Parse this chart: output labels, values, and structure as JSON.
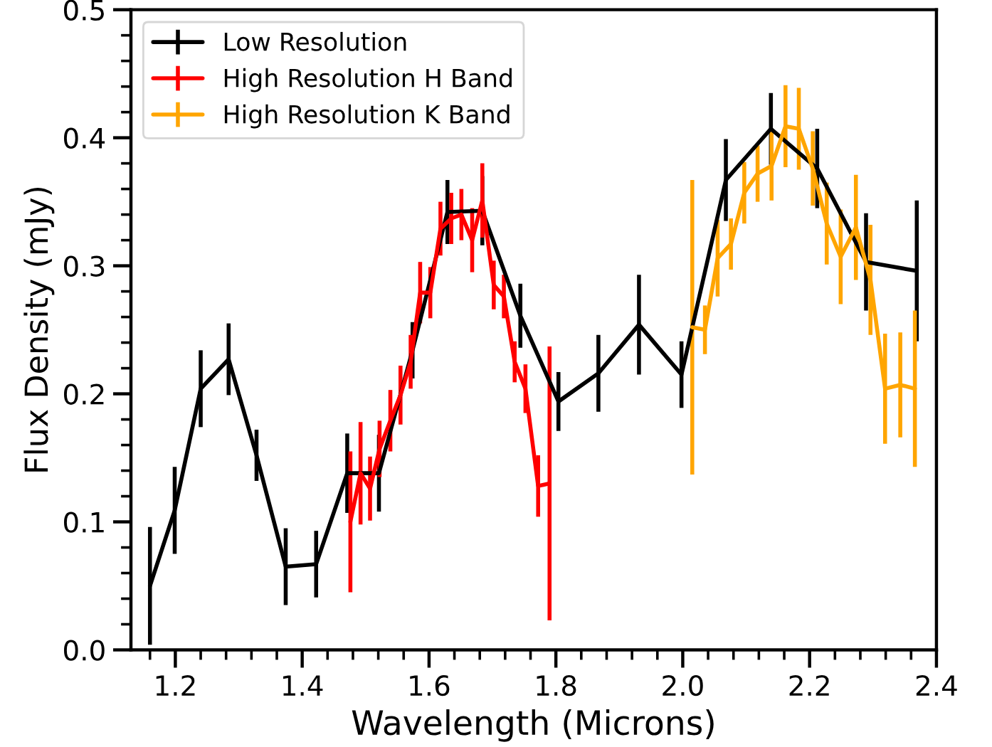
{
  "chart_data": {
    "type": "line",
    "xlabel": "Wavelength (Microns)",
    "ylabel": "Flux Density (mJy)",
    "xlim": [
      1.13,
      2.4
    ],
    "ylim": [
      0,
      0.5
    ],
    "xticks": [
      1.2,
      1.4,
      1.6,
      1.8,
      {
        "value": 2,
        "label": "2.0"
      },
      2.2,
      2.4
    ],
    "yticks": [
      {
        "value": 0,
        "label": "0.0"
      },
      0.1,
      0.2,
      0.3,
      0.4,
      0.5
    ],
    "grid": false,
    "legend": "top left",
    "marker": "none",
    "line_style": "solid",
    "series": [
      {
        "name": "Low Resolution",
        "color": "#000000",
        "x": [
          1.16,
          1.199,
          1.24,
          1.284,
          1.328,
          1.374,
          1.422,
          1.471,
          1.521,
          1.574,
          1.629,
          1.684,
          1.744,
          1.804,
          1.867,
          1.931,
          1.998,
          2.068,
          2.139,
          2.212,
          2.289,
          2.369
        ],
        "values": [
          0.05,
          0.109,
          0.204,
          0.227,
          0.152,
          0.065,
          0.067,
          0.138,
          0.138,
          0.234,
          0.342,
          0.343,
          0.261,
          0.194,
          0.216,
          0.254,
          0.215,
          0.367,
          0.407,
          0.376,
          0.303,
          0.296
        ],
        "errors": [
          0.046,
          0.034,
          0.03,
          0.028,
          0.02,
          0.03,
          0.026,
          0.031,
          0.03,
          0.022,
          0.025,
          0.027,
          0.025,
          0.023,
          0.03,
          0.039,
          0.026,
          0.032,
          0.028,
          0.031,
          0.038,
          0.055
        ]
      },
      {
        "name": "High Resolution H Band",
        "color": "#ff0000",
        "x": [
          1.476,
          1.492,
          1.507,
          1.522,
          1.539,
          1.555,
          1.571,
          1.586,
          1.602,
          1.618,
          1.635,
          1.651,
          1.668,
          1.684,
          1.702,
          1.718,
          1.735,
          1.752,
          1.772,
          1.79
        ],
        "values": [
          0.1,
          0.138,
          0.126,
          0.157,
          0.179,
          0.199,
          0.225,
          0.279,
          0.279,
          0.329,
          0.337,
          0.34,
          0.32,
          0.351,
          0.285,
          0.276,
          0.225,
          0.204,
          0.128,
          0.13
        ],
        "errors": [
          0.055,
          0.04,
          0.025,
          0.022,
          0.024,
          0.023,
          0.021,
          0.024,
          0.02,
          0.021,
          0.02,
          0.02,
          0.025,
          0.029,
          0.019,
          0.017,
          0.016,
          0.019,
          0.024,
          0.107
        ]
      },
      {
        "name": "High Resolution K Band",
        "color": "#ffa500",
        "x": [
          2.015,
          2.035,
          2.055,
          2.076,
          2.097,
          2.118,
          2.14,
          2.162,
          2.183,
          2.205,
          2.227,
          2.249,
          2.273,
          2.296,
          2.319,
          2.343,
          2.366
        ],
        "values": [
          0.252,
          0.25,
          0.306,
          0.317,
          0.357,
          0.372,
          0.378,
          0.409,
          0.407,
          0.376,
          0.333,
          0.307,
          0.33,
          0.289,
          0.204,
          0.207,
          0.204
        ],
        "errors": [
          0.115,
          0.019,
          0.03,
          0.02,
          0.024,
          0.022,
          0.027,
          0.032,
          0.032,
          0.029,
          0.032,
          0.037,
          0.041,
          0.043,
          0.043,
          0.041,
          0.061
        ]
      }
    ]
  }
}
